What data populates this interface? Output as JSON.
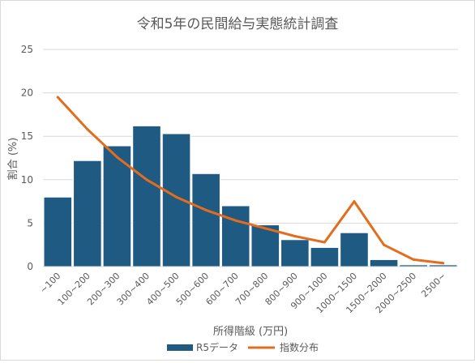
{
  "chart_data": {
    "type": "bar",
    "title": "令和5年の民間給与実態統計調査",
    "xlabel": "所得階級 (万円)",
    "ylabel": "割合 (%)",
    "ylim": [
      0,
      25
    ],
    "yticks": [
      0,
      5,
      10,
      15,
      20,
      25
    ],
    "grid": true,
    "legend_position": "bottom",
    "categories": [
      "~100",
      "100~200",
      "200~300",
      "300~400",
      "400~500",
      "500~600",
      "600~700",
      "700~800",
      "800~900",
      "900~1000",
      "1000~1500",
      "1500~2000",
      "2000~2500",
      "2500~"
    ],
    "series": [
      {
        "name": "R5データ",
        "type": "bar",
        "color": "#1f5a82",
        "values": [
          8.0,
          12.2,
          13.9,
          16.2,
          15.3,
          10.7,
          7.0,
          4.8,
          3.1,
          2.2,
          3.9,
          0.8,
          0.2,
          0.2
        ]
      },
      {
        "name": "指数分布",
        "type": "line",
        "color": "#e46c1d",
        "values": [
          19.5,
          15.8,
          12.6,
          10.0,
          8.0,
          6.5,
          5.3,
          4.4,
          3.5,
          2.8,
          7.5,
          2.5,
          0.8,
          0.4
        ]
      }
    ]
  }
}
